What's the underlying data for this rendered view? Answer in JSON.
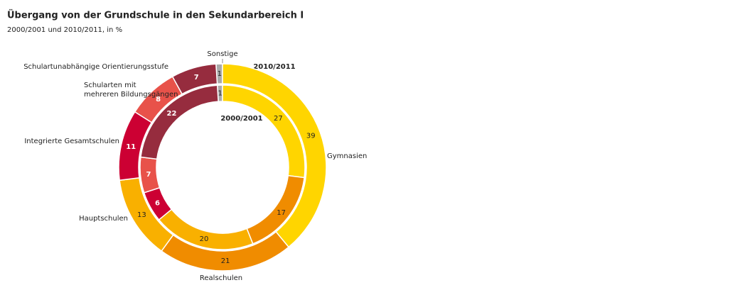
{
  "chart_data": {
    "type": "donut",
    "title": "Übergang von der Grundschule in den Sekundarbereich I",
    "subtitle": "2000/2001 und 2010/2011, in %",
    "categories": [
      "Sonstige",
      "Gymnasien",
      "Realschulen",
      "Hauptschulen",
      "Integrierte Gesamtschulen",
      "Schularten mit\nmehreren Bildungsgängen",
      "Schulartunabhängige Orientierungsstufe"
    ],
    "colors": [
      "#aaaaaa",
      "#ffd500",
      "#f08c00",
      "#f9b000",
      "#cc0033",
      "#e8524a",
      "#962c3e"
    ],
    "series": [
      {
        "name": "2010/2011",
        "values": [
          1,
          39,
          21,
          13,
          11,
          8,
          7
        ]
      },
      {
        "name": "2000/2001",
        "values": [
          1,
          27,
          17,
          20,
          6,
          7,
          22
        ]
      }
    ]
  }
}
